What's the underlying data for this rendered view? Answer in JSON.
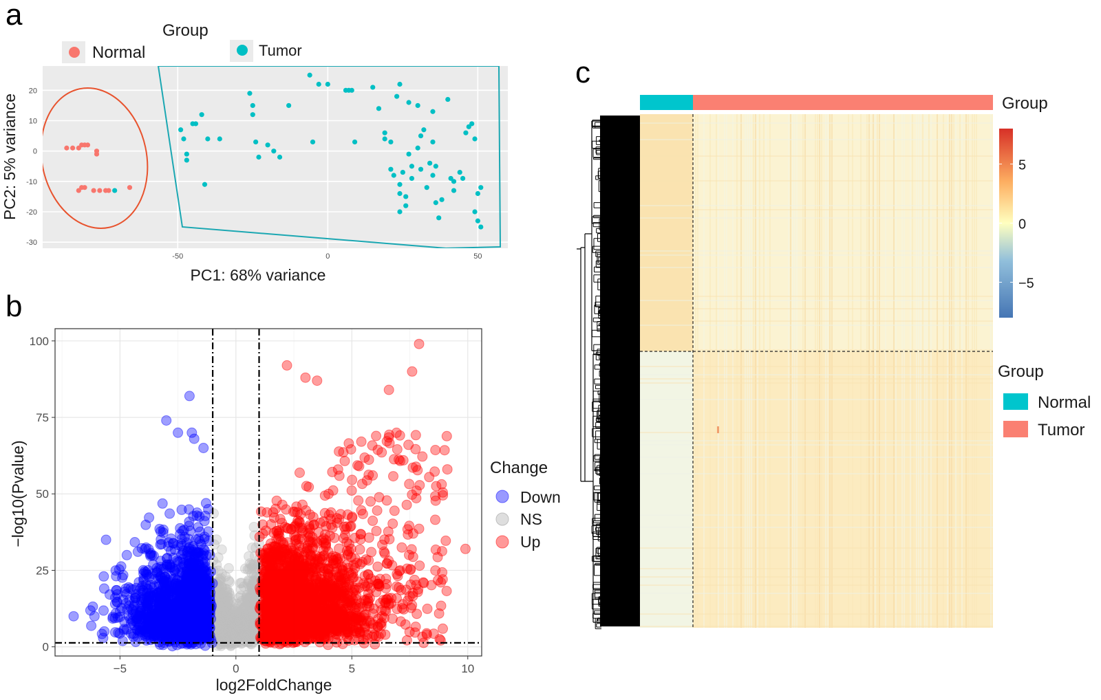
{
  "panel_labels": {
    "a": "a",
    "b": "b",
    "c": "c"
  },
  "chart_data": [
    {
      "panel": "a",
      "type": "scatter",
      "xlabel": "PC1: 68% variance",
      "ylabel": "PC2: 5% variance",
      "xlim": [
        -95,
        60
      ],
      "ylim": [
        -32,
        28
      ],
      "xticks": [
        -50,
        0,
        50
      ],
      "yticks": [
        20,
        10,
        0,
        -10,
        -20,
        -30
      ],
      "grid": true,
      "legend": {
        "title": "Group",
        "position": "top",
        "entries": [
          {
            "label": "Normal",
            "color": "#F8766D"
          },
          {
            "label": "Tumor",
            "color": "#00BFC4"
          }
        ]
      },
      "series": [
        {
          "name": "Normal",
          "color": "#F8766D",
          "x": [
            -87,
            -85,
            -83,
            -82,
            -81,
            -80,
            -77,
            -77,
            -83,
            -82,
            -81,
            -78,
            -76,
            -74,
            -73,
            -66
          ],
          "y": [
            1,
            1,
            1,
            2,
            2,
            2,
            0,
            -1,
            -13,
            -12,
            -12,
            -13,
            -13,
            -13,
            -13,
            -12
          ]
        },
        {
          "name": "Tumor",
          "color": "#00BFC4",
          "x": [
            -71,
            -49,
            -48,
            -47,
            -47,
            -45,
            -44,
            -42,
            -41,
            -40,
            -36,
            -26,
            -25,
            -25,
            -24,
            -23,
            -20,
            -18,
            -16,
            -13,
            -6,
            -5,
            -3,
            0,
            6,
            7,
            8,
            9,
            15,
            17,
            19,
            19,
            21,
            21,
            22,
            24,
            24,
            25,
            26,
            24,
            26,
            28,
            28,
            30,
            31,
            32,
            33,
            34,
            35,
            35,
            36,
            37,
            38,
            40,
            42,
            44,
            45,
            46,
            47,
            48,
            49,
            49,
            50,
            50,
            51,
            51,
            41,
            42,
            36,
            24,
            27,
            30,
            31,
            35,
            27,
            23
          ],
          "y": [
            -13,
            7,
            4,
            -1,
            -3,
            9,
            9,
            12,
            -11,
            4,
            4,
            19,
            15,
            12,
            3,
            -2,
            2,
            0,
            -2,
            15,
            25,
            3,
            22,
            22,
            20,
            20,
            20,
            3,
            21,
            14,
            6,
            4,
            3,
            -6,
            -8,
            -14,
            -11,
            -7,
            -15,
            -20,
            -18,
            -9,
            -5,
            1,
            5,
            7,
            -12,
            -4,
            -8,
            13,
            -17,
            -22,
            -16,
            17,
            -13,
            -7,
            -9,
            6,
            8,
            9,
            -20,
            4,
            -23,
            -14,
            -12,
            -25,
            -9,
            -10,
            -5,
            22,
            -1,
            15,
            -6,
            3,
            16,
            18
          ],
          "note": "approximate positions of visible Tumor samples"
        }
      ],
      "annotations": [
        {
          "shape": "ellipse",
          "group": "Normal",
          "color": "#E8532E"
        },
        {
          "shape": "polygon",
          "group": "Tumor",
          "color": "#1AA7B2"
        }
      ]
    },
    {
      "panel": "b",
      "type": "scatter",
      "xlabel": "log2FoldChange",
      "ylabel": "−log10(Pvalue)",
      "xlim": [
        -7.8,
        10.6
      ],
      "ylim": [
        -3,
        104
      ],
      "xticks": [
        -5,
        0,
        5,
        10
      ],
      "yticks": [
        0,
        25,
        50,
        75,
        100
      ],
      "xtick_labels": [
        "−5",
        "0",
        "5",
        "10"
      ],
      "grid": true,
      "thresholds": {
        "log2fc": [
          -1,
          1
        ],
        "neg_log10_p": 1.3
      },
      "legend": {
        "title": "Change",
        "position": "right",
        "entries": [
          {
            "label": "Down",
            "color": "#0000FF"
          },
          {
            "label": "NS",
            "color": "#BEBEBE"
          },
          {
            "label": "Up",
            "color": "#FF0000"
          }
        ]
      },
      "series": [
        {
          "name": "Down",
          "color": "#0000FF",
          "shape": "dense cloud, log2FC -6 to -1, peak ~82 near -2"
        },
        {
          "name": "NS",
          "color": "#BEBEBE",
          "shape": "narrow band, log2FC -1 to 1"
        },
        {
          "name": "Up",
          "color": "#FF0000",
          "shape": "dense cloud, log2FC 1 to 10, peak ~99 near 7.9"
        }
      ],
      "highlight_points": [
        {
          "series": "Down",
          "x": [
            -7.0,
            -6.1,
            -5.7,
            -5.6,
            -3.0,
            -2.5,
            -2.0,
            -1.9,
            -1.8,
            -1.4
          ],
          "y": [
            10,
            10,
            23,
            35,
            74,
            70,
            82,
            70,
            68,
            65
          ]
        },
        {
          "series": "Up",
          "x": [
            2.2,
            3.0,
            3.5,
            6.6,
            7.6,
            7.9,
            9.9
          ],
          "y": [
            92,
            88,
            87,
            84,
            90,
            99,
            32
          ]
        }
      ]
    },
    {
      "panel": "c",
      "type": "heatmap",
      "annotation_bar": {
        "label": "Group",
        "segments": [
          {
            "group": "Normal",
            "color": "#00C5CD",
            "fraction": 0.15
          },
          {
            "group": "Tumor",
            "color": "#FA8072",
            "fraction": 0.85
          }
        ]
      },
      "colorbar": {
        "ticks": [
          5,
          0,
          -5
        ],
        "tick_labels": [
          "5",
          "0",
          "−5"
        ],
        "range": [
          -8,
          8
        ],
        "colors": [
          "#4575B4",
          "#E0F3F8",
          "#FFFFBF",
          "#FDAE61",
          "#D73027"
        ]
      },
      "legend": {
        "title": "Group",
        "entries": [
          {
            "label": "Normal",
            "color": "#00C5CD"
          },
          {
            "label": "Tumor",
            "color": "#FA8072"
          }
        ]
      },
      "row_split_fraction": 0.47,
      "column_split_fraction": 0.15,
      "row_dendrogram": true
    }
  ]
}
